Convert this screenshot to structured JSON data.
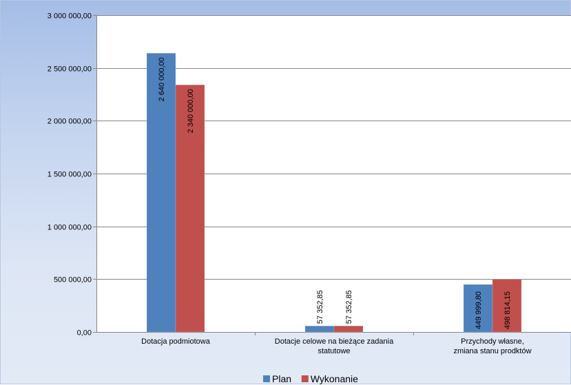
{
  "chart_data": {
    "type": "bar",
    "categories": [
      [
        "Dotacja podmiotowa"
      ],
      [
        "Dotacje celowe na bieżące zadania",
        "statutowe"
      ],
      [
        "Przychody własne,",
        "zmiana stanu prodktów"
      ]
    ],
    "series": [
      {
        "name": "Plan",
        "color": "#4f81bd",
        "values": [
          2640000.0,
          57352.85,
          449999.8
        ],
        "labels": [
          "2 640 000,00",
          "57 352,85",
          "449 999,80"
        ]
      },
      {
        "name": "Wykonanie",
        "color": "#c0504d",
        "values": [
          2340000.0,
          57352.85,
          498814.15
        ],
        "labels": [
          "2 340 000,00",
          "57 352,85",
          "498 814,15"
        ]
      }
    ],
    "y_ticks": [
      0,
      500000,
      1000000,
      1500000,
      2000000,
      2500000,
      3000000
    ],
    "y_tick_labels": [
      "0,00",
      "500 000,00",
      "1 000 000,00",
      "1 500 000,00",
      "2 000 000,00",
      "2 500 000,00",
      "3 000 000,00"
    ],
    "ylim": [
      0,
      3000000
    ],
    "grid": true,
    "legend_position": "bottom"
  }
}
